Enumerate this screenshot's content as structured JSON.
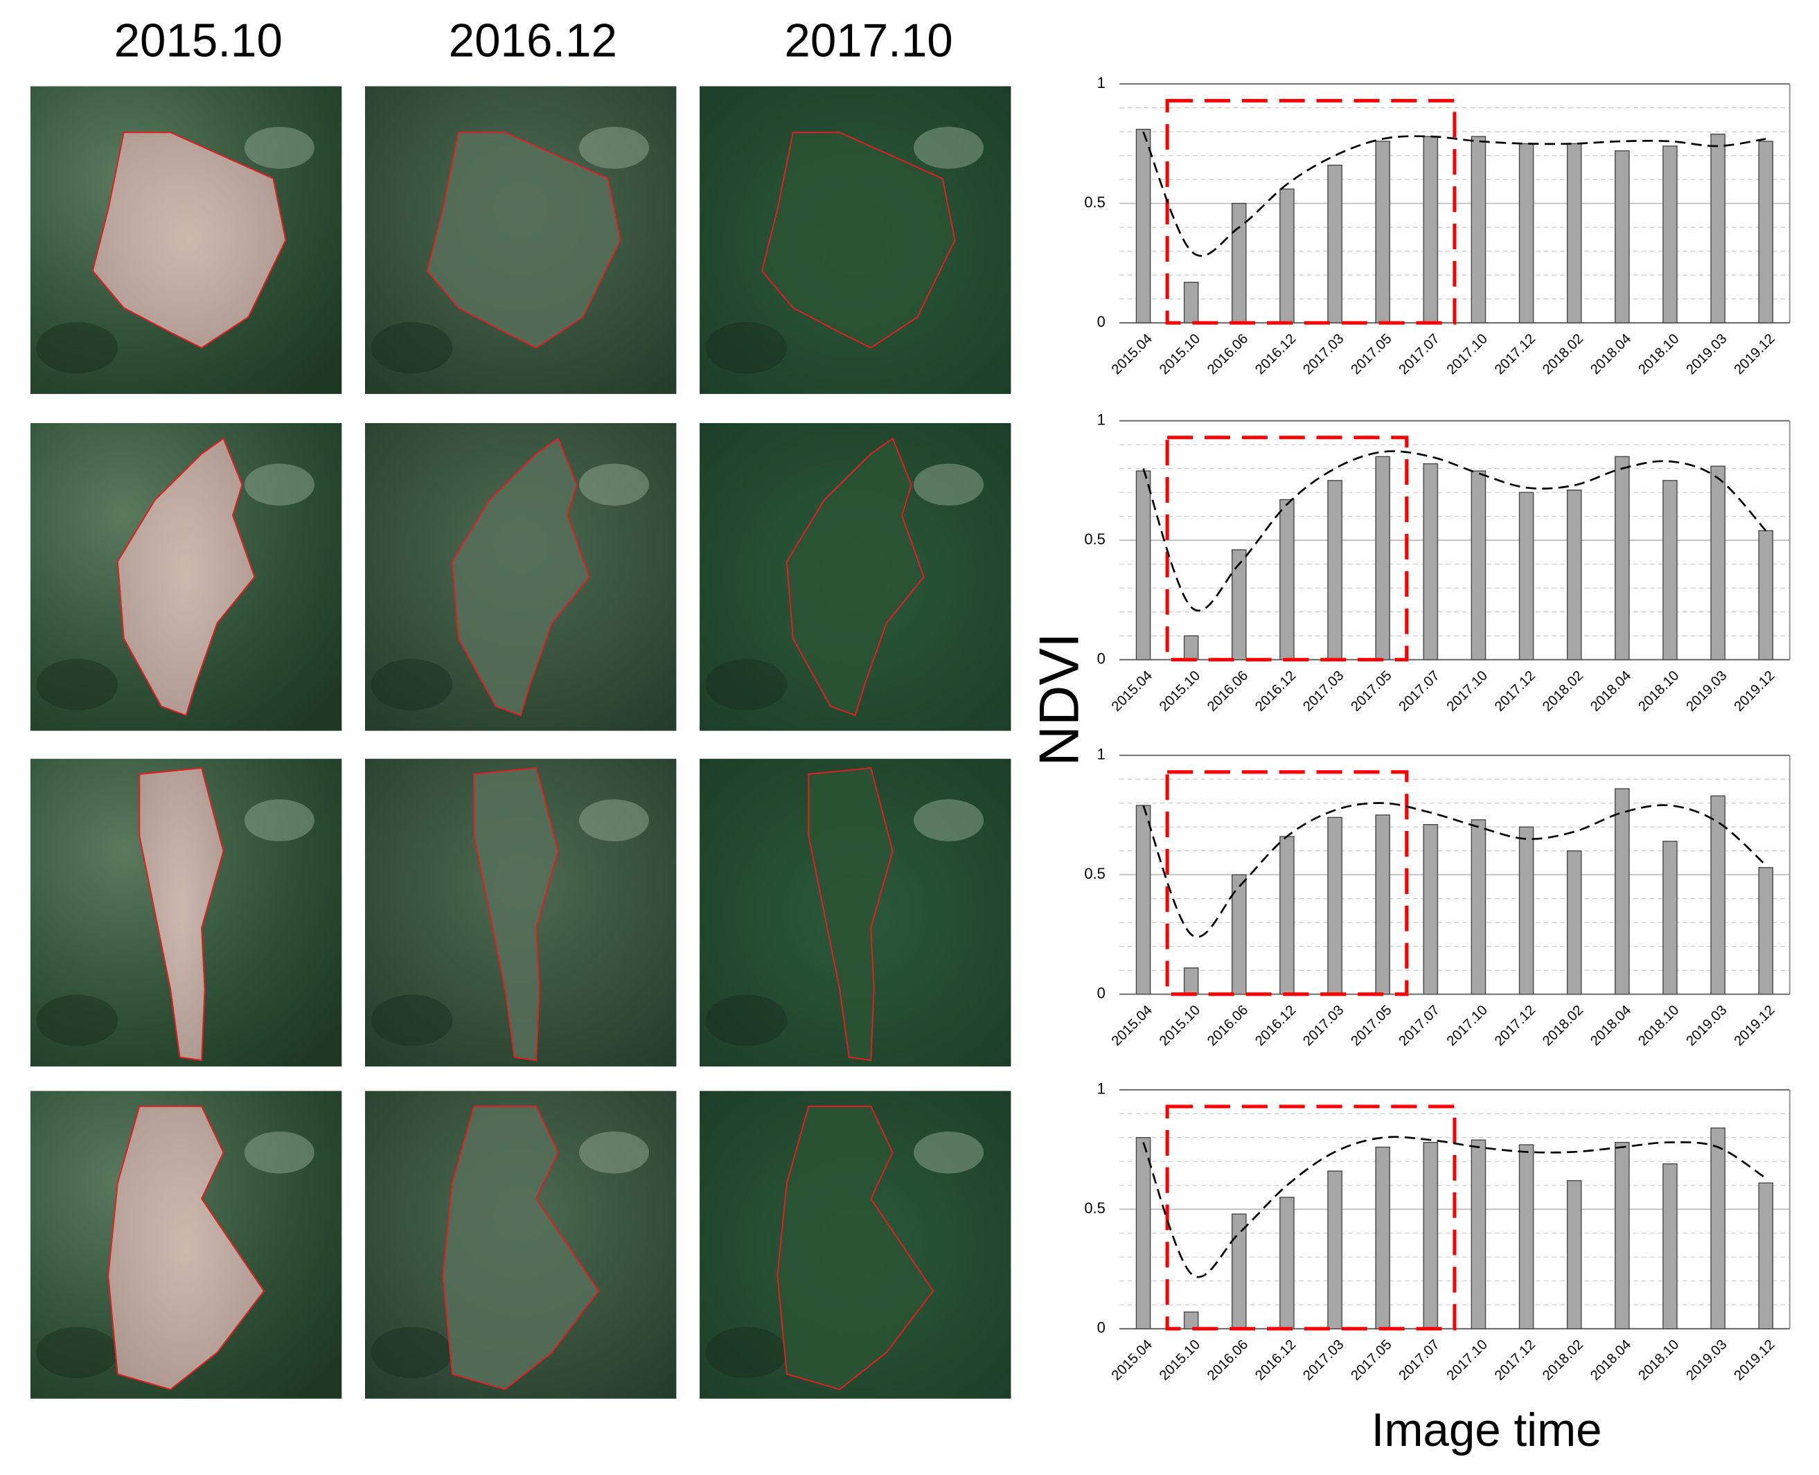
{
  "figure": {
    "column_titles": [
      "2015.10",
      "2016.12",
      "2017.10"
    ],
    "ylabel": "NDVI",
    "xlabel": "Image time"
  },
  "chart_data": [
    {
      "type": "bar",
      "categories": [
        "2015.04",
        "2015.10",
        "2016.06",
        "2016.12",
        "2017.03",
        "2017.05",
        "2017.07",
        "2017.10",
        "2017.12",
        "2018.02",
        "2018.04",
        "2018.10",
        "2019.03",
        "2019.12"
      ],
      "values": [
        0.81,
        0.17,
        0.5,
        0.56,
        0.66,
        0.76,
        0.78,
        0.78,
        0.75,
        0.75,
        0.72,
        0.74,
        0.79,
        0.76
      ],
      "trend": [
        0.8,
        0.3,
        0.4,
        0.58,
        0.7,
        0.77,
        0.78,
        0.76,
        0.75,
        0.75,
        0.76,
        0.76,
        0.74,
        0.77
      ],
      "color": "#a6a6a6",
      "trend_color": "#000000",
      "highlight_color": "#ff0000",
      "highlight_categories": [
        "2015.10",
        "2017.07"
      ],
      "highlight_top": 0.93,
      "ylim": [
        0,
        1
      ],
      "yticks": [
        0,
        0.5,
        1
      ],
      "minor_yticks": [
        0.1,
        0.2,
        0.3,
        0.4,
        0.6,
        0.7,
        0.8,
        0.9
      ],
      "grid": true
    },
    {
      "type": "bar",
      "categories": [
        "2015.04",
        "2015.10",
        "2016.06",
        "2016.12",
        "2017.03",
        "2017.05",
        "2017.07",
        "2017.10",
        "2017.12",
        "2018.02",
        "2018.04",
        "2018.10",
        "2019.03",
        "2019.12"
      ],
      "values": [
        0.79,
        0.1,
        0.46,
        0.67,
        0.75,
        0.85,
        0.82,
        0.79,
        0.7,
        0.71,
        0.85,
        0.75,
        0.81,
        0.54
      ],
      "trend": [
        0.8,
        0.22,
        0.4,
        0.65,
        0.8,
        0.87,
        0.85,
        0.78,
        0.72,
        0.73,
        0.8,
        0.83,
        0.76,
        0.54
      ],
      "color": "#a6a6a6",
      "trend_color": "#000000",
      "highlight_color": "#ff0000",
      "highlight_categories": [
        "2015.10",
        "2017.05"
      ],
      "highlight_top": 0.93,
      "ylim": [
        0,
        1
      ],
      "yticks": [
        0,
        0.5,
        1
      ],
      "minor_yticks": [
        0.1,
        0.2,
        0.3,
        0.4,
        0.6,
        0.7,
        0.8,
        0.9
      ],
      "grid": true
    },
    {
      "type": "bar",
      "categories": [
        "2015.04",
        "2015.10",
        "2016.06",
        "2016.12",
        "2017.03",
        "2017.05",
        "2017.07",
        "2017.10",
        "2017.12",
        "2018.02",
        "2018.04",
        "2018.10",
        "2019.03",
        "2019.12"
      ],
      "values": [
        0.79,
        0.11,
        0.5,
        0.66,
        0.74,
        0.75,
        0.71,
        0.73,
        0.7,
        0.6,
        0.86,
        0.64,
        0.83,
        0.53
      ],
      "trend": [
        0.79,
        0.25,
        0.45,
        0.66,
        0.77,
        0.8,
        0.76,
        0.7,
        0.65,
        0.68,
        0.76,
        0.79,
        0.72,
        0.54
      ],
      "color": "#a6a6a6",
      "trend_color": "#000000",
      "highlight_color": "#ff0000",
      "highlight_categories": [
        "2015.10",
        "2017.05"
      ],
      "highlight_top": 0.93,
      "ylim": [
        0,
        1
      ],
      "yticks": [
        0,
        0.5,
        1
      ],
      "minor_yticks": [
        0.1,
        0.2,
        0.3,
        0.4,
        0.6,
        0.7,
        0.8,
        0.9
      ],
      "grid": true
    },
    {
      "type": "bar",
      "categories": [
        "2015.04",
        "2015.10",
        "2016.06",
        "2016.12",
        "2017.03",
        "2017.05",
        "2017.07",
        "2017.10",
        "2017.12",
        "2018.02",
        "2018.04",
        "2018.10",
        "2019.03",
        "2019.12"
      ],
      "values": [
        0.8,
        0.07,
        0.48,
        0.55,
        0.66,
        0.76,
        0.78,
        0.79,
        0.77,
        0.62,
        0.78,
        0.69,
        0.84,
        0.61
      ],
      "trend": [
        0.78,
        0.23,
        0.4,
        0.6,
        0.74,
        0.8,
        0.79,
        0.76,
        0.74,
        0.74,
        0.76,
        0.78,
        0.76,
        0.63
      ],
      "color": "#a6a6a6",
      "trend_color": "#000000",
      "highlight_color": "#ff0000",
      "highlight_categories": [
        "2015.10",
        "2017.07"
      ],
      "highlight_top": 0.93,
      "ylim": [
        0,
        1
      ],
      "yticks": [
        0,
        0.5,
        1
      ],
      "minor_yticks": [
        0.1,
        0.2,
        0.3,
        0.4,
        0.6,
        0.7,
        0.8,
        0.9
      ],
      "grid": true
    }
  ]
}
